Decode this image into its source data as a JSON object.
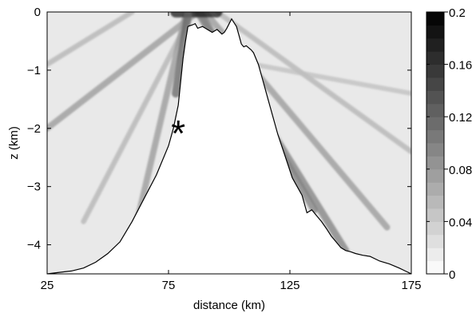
{
  "chart_data": {
    "type": "heatmap",
    "title": "",
    "xlabel": "distance (km)",
    "ylabel": "z (km)",
    "xlim": [
      25,
      175
    ],
    "ylim": [
      -4.5,
      0
    ],
    "xticks": [
      25,
      75,
      125,
      175
    ],
    "xtick_labels": [
      "25",
      "75",
      "125",
      "175"
    ],
    "yticks": [
      0,
      -1,
      -2,
      -3,
      -4
    ],
    "ytick_labels": [
      "0",
      "−1",
      "−2",
      "−3",
      "−4"
    ],
    "colorbar": {
      "range": [
        0,
        0.2
      ],
      "levels": 20,
      "colormap": "grayscale (white = 0, black = 0.2)",
      "ticks": [
        0,
        0.04,
        0.08,
        0.12,
        0.16,
        0.2
      ],
      "tick_labels": [
        "0",
        "0.04",
        "0.08",
        "0.12",
        "0.16",
        "0.2"
      ]
    },
    "marker": {
      "symbol": "*",
      "x": 79,
      "z": -2.0
    },
    "topography": {
      "x": [
        25,
        29,
        35,
        40,
        45,
        50,
        55,
        60,
        65,
        70,
        75,
        77,
        79,
        80,
        81,
        82,
        83,
        85,
        86,
        87,
        89,
        91,
        93,
        95,
        97,
        98,
        99,
        101,
        103,
        104,
        105,
        106,
        107,
        109,
        110,
        112,
        114,
        116,
        118,
        120,
        122,
        124,
        126,
        128,
        130,
        132,
        134,
        135,
        136,
        138,
        140,
        142,
        144,
        146,
        148,
        150,
        152,
        155,
        158,
        162,
        166,
        170,
        175
      ],
      "z": [
        -4.5,
        -4.48,
        -4.45,
        -4.4,
        -4.3,
        -4.15,
        -3.95,
        -3.6,
        -3.2,
        -2.8,
        -2.3,
        -2.0,
        -1.6,
        -1.2,
        -0.8,
        -0.5,
        -0.25,
        -0.22,
        -0.2,
        -0.28,
        -0.25,
        -0.3,
        -0.35,
        -0.3,
        -0.38,
        -0.35,
        -0.28,
        -0.12,
        -0.25,
        -0.4,
        -0.55,
        -0.6,
        -0.58,
        -0.65,
        -0.7,
        -0.9,
        -1.2,
        -1.5,
        -1.8,
        -2.1,
        -2.35,
        -2.6,
        -2.85,
        -3.0,
        -3.15,
        -3.45,
        -3.4,
        -3.45,
        -3.5,
        -3.6,
        -3.72,
        -3.85,
        -3.95,
        -4.05,
        -4.1,
        -4.12,
        -4.15,
        -4.18,
        -4.2,
        -4.28,
        -4.33,
        -4.4,
        -4.5
      ]
    },
    "bands": [
      {
        "x0": 25,
        "z0": -2.0,
        "x1": 87,
        "z1": 0.0,
        "value": 0.08
      },
      {
        "x0": 25,
        "z0": -0.9,
        "x1": 60,
        "z1": 0.0,
        "value": 0.06
      },
      {
        "x0": 40,
        "z0": -3.6,
        "x1": 85,
        "z1": 0.0,
        "value": 0.06
      },
      {
        "x0": 57,
        "z0": -4.5,
        "x1": 82,
        "z1": -0.05,
        "value": 0.08
      },
      {
        "x0": 87,
        "z0": 0.0,
        "x1": 148,
        "z1": -4.1,
        "value": 0.1
      },
      {
        "x0": 90,
        "z0": 0.0,
        "x1": 165,
        "z1": -3.7,
        "value": 0.08
      },
      {
        "x0": 88,
        "z0": 0.0,
        "x1": 135,
        "z1": -3.4,
        "value": 0.1
      },
      {
        "x0": 95,
        "z0": 0.0,
        "x1": 175,
        "z1": -2.4,
        "value": 0.06
      },
      {
        "x0": 110,
        "z0": -0.9,
        "x1": 175,
        "z1": -1.4,
        "value": 0.05
      },
      {
        "x0": 78,
        "z0": 0.0,
        "x1": 95,
        "z1": 0.0,
        "value": 0.18
      },
      {
        "x0": 83,
        "z0": -0.05,
        "x1": 78,
        "z1": -1.4,
        "value": 0.12
      }
    ]
  }
}
